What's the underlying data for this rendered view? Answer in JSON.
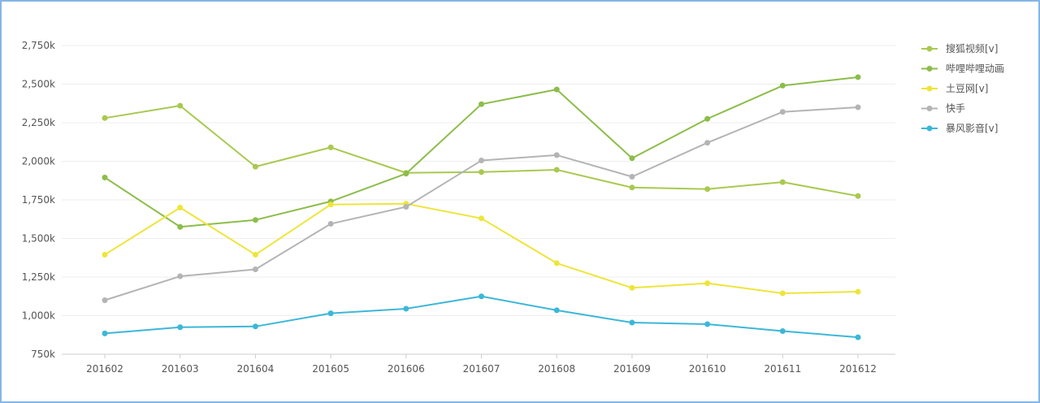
{
  "chart_data": {
    "type": "line",
    "categories": [
      "201602",
      "201603",
      "201604",
      "201605",
      "201606",
      "201607",
      "201608",
      "201609",
      "201610",
      "201611",
      "201612"
    ],
    "ylim": [
      750,
      2750
    ],
    "yticks": [
      {
        "value": 750,
        "label": "750k"
      },
      {
        "value": 1000,
        "label": "1,000k"
      },
      {
        "value": 1250,
        "label": "1,250k"
      },
      {
        "value": 1500,
        "label": "1,500k"
      },
      {
        "value": 1750,
        "label": "1,750k"
      },
      {
        "value": 2000,
        "label": "2,000k"
      },
      {
        "value": 2250,
        "label": "2,250k"
      },
      {
        "value": 2500,
        "label": "2,500k"
      },
      {
        "value": 2750,
        "label": "2,750k"
      }
    ],
    "grid": true,
    "legend_position": "right",
    "series": [
      {
        "name": "搜狐视频[v]",
        "color": "#a9c94f",
        "values": [
          2280,
          2360,
          1965,
          2090,
          1925,
          1930,
          1945,
          1830,
          1820,
          1865,
          1775
        ]
      },
      {
        "name": "哔哩哔哩动画",
        "color": "#8cbd4a",
        "values": [
          1895,
          1575,
          1620,
          1740,
          1920,
          2370,
          2465,
          2020,
          2275,
          2490,
          2545
        ]
      },
      {
        "name": "土豆网[v]",
        "color": "#eee53a",
        "values": [
          1395,
          1700,
          1395,
          1720,
          1725,
          1630,
          1340,
          1180,
          1210,
          1145,
          1155
        ]
      },
      {
        "name": "快手",
        "color": "#b4b4b4",
        "values": [
          1100,
          1255,
          1300,
          1595,
          1705,
          2005,
          2040,
          1900,
          2120,
          2320,
          2350
        ]
      },
      {
        "name": "暴风影音[v]",
        "color": "#3cb7d8",
        "values": [
          885,
          925,
          930,
          1015,
          1045,
          1125,
          1035,
          955,
          945,
          900,
          860
        ]
      }
    ]
  }
}
